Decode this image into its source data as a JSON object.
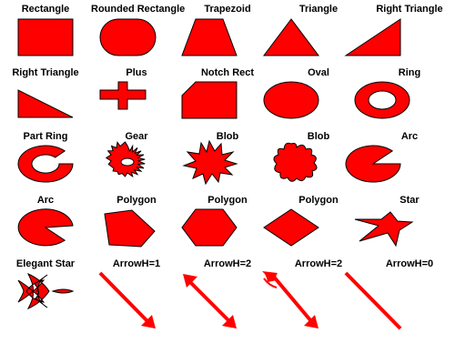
{
  "shapes": [
    {
      "label": "Rectangle",
      "icon": "rectangle-icon"
    },
    {
      "label": "Rounded Rectangle",
      "icon": "rounded-rectangle-icon"
    },
    {
      "label": "Trapezoid",
      "icon": "trapezoid-icon"
    },
    {
      "label": "Triangle",
      "icon": "triangle-icon"
    },
    {
      "label": "Right Triangle",
      "icon": "right-triangle-icon"
    },
    {
      "label": "Right Triangle",
      "icon": "right-triangle-icon"
    },
    {
      "label": "Plus",
      "icon": "plus-icon"
    },
    {
      "label": "Notch Rect",
      "icon": "notch-rect-icon"
    },
    {
      "label": "Oval",
      "icon": "oval-icon"
    },
    {
      "label": "Ring",
      "icon": "ring-icon"
    },
    {
      "label": "Part Ring",
      "icon": "part-ring-icon"
    },
    {
      "label": "Gear",
      "icon": "gear-icon"
    },
    {
      "label": "Blob",
      "icon": "blob-spiky-icon"
    },
    {
      "label": "Blob",
      "icon": "blob-wavy-icon"
    },
    {
      "label": "Arc",
      "icon": "arc-icon"
    },
    {
      "label": "Arc",
      "icon": "arc-icon"
    },
    {
      "label": "Polygon",
      "icon": "pentagon-icon"
    },
    {
      "label": "Polygon",
      "icon": "hexagon-icon"
    },
    {
      "label": "Polygon",
      "icon": "diamond-icon"
    },
    {
      "label": "Star",
      "icon": "star-icon"
    },
    {
      "label": "Elegant Star",
      "icon": "elegant-star-icon"
    },
    {
      "label": "ArrowH=1",
      "icon": "arrow-head-end-icon"
    },
    {
      "label": "ArrowH=2",
      "icon": "arrow-head-both-icon"
    },
    {
      "label": "ArrowH=2",
      "icon": "arrow-fancy-both-icon"
    },
    {
      "label": "ArrowH=0",
      "icon": "line-no-head-icon"
    }
  ],
  "colors": {
    "fill": "#ff0000",
    "stroke": "#000000",
    "text": "#000000"
  }
}
